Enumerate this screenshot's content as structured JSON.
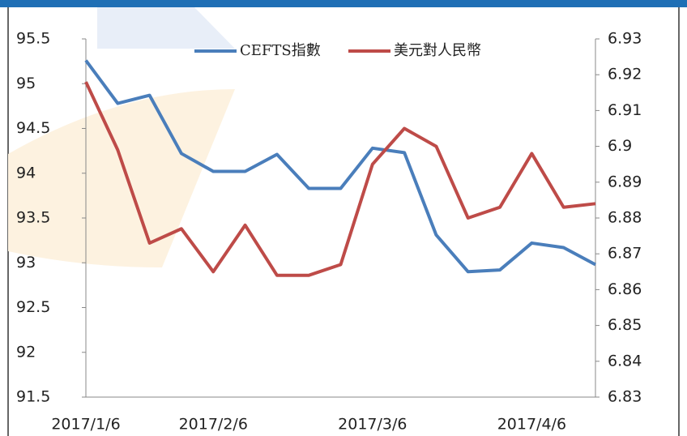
{
  "chart_data": {
    "type": "line",
    "categories": [
      "2017/1/6",
      null,
      null,
      null,
      "2017/2/6",
      null,
      null,
      null,
      null,
      "2017/3/6",
      null,
      null,
      null,
      null,
      "2017/4/6",
      null,
      null
    ],
    "series": [
      {
        "name": "CEFTS指數",
        "color": "#4a7ebb",
        "values": [
          95.26,
          94.78,
          94.87,
          94.22,
          94.02,
          94.02,
          94.21,
          93.83,
          93.83,
          94.28,
          94.23,
          93.31,
          92.9,
          92.92,
          93.22,
          93.17,
          92.98
        ]
      },
      {
        "name": "美元對人民幣",
        "color": "#be4b48",
        "axis": "y2",
        "values": [
          6.918,
          6.899,
          6.873,
          6.877,
          6.865,
          6.878,
          6.864,
          6.864,
          6.867,
          6.895,
          6.905,
          6.9,
          6.88,
          6.883,
          6.898,
          6.883,
          6.884
        ]
      }
    ],
    "ylim": [
      91.5,
      95.5
    ],
    "yticks": [
      91.5,
      92,
      92.5,
      93,
      93.5,
      94,
      94.5,
      95,
      95.5
    ],
    "y2lim": [
      6.83,
      6.93
    ],
    "y2ticks": [
      6.83,
      6.84,
      6.85,
      6.86,
      6.87,
      6.88,
      6.89,
      6.9,
      6.91,
      6.92,
      6.93
    ],
    "legend": "top"
  }
}
